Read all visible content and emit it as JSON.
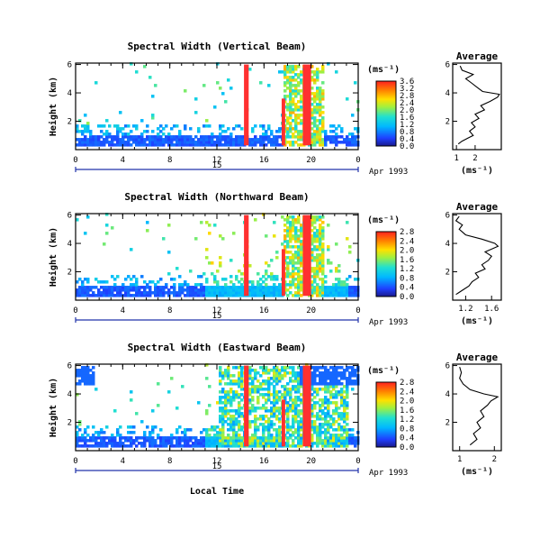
{
  "chart_data": {
    "type": "heatmap",
    "x_axis_label": "Local Time",
    "date_label": "Apr 1993",
    "day_label": "15",
    "y_axis_label": "Height (km)",
    "colorbar_unit": "(ms⁻¹)",
    "panels": [
      {
        "title": "Spectral Width (Vertical Beam)",
        "x_ticks": [
          "0",
          "4",
          "8",
          "12",
          "16",
          "20",
          "0"
        ],
        "y_ticks": [
          "6",
          "4",
          "2"
        ],
        "colorbar_ticks": [
          "3.6",
          "3.2",
          "2.8",
          "2.4",
          "2.0",
          "1.6",
          "1.2",
          "0.8",
          "0.4",
          "0.0"
        ],
        "colorbar_max": 3.6,
        "average": {
          "title": "Average",
          "x_label": "(ms⁻¹)",
          "x_ticks": [
            "1",
            "2"
          ],
          "y_ticks": [
            "6",
            "4",
            "2"
          ],
          "xlim": [
            0.8,
            3.4
          ],
          "profile": [
            [
              1.1,
              0.4
            ],
            [
              1.3,
              0.6
            ],
            [
              1.6,
              0.8
            ],
            [
              1.9,
              1.0
            ],
            [
              1.7,
              1.3
            ],
            [
              2.0,
              1.6
            ],
            [
              1.8,
              1.9
            ],
            [
              2.2,
              2.2
            ],
            [
              2.0,
              2.5
            ],
            [
              2.5,
              2.8
            ],
            [
              2.3,
              3.1
            ],
            [
              2.8,
              3.4
            ],
            [
              3.2,
              3.7
            ],
            [
              3.3,
              3.9
            ],
            [
              2.4,
              4.1
            ],
            [
              2.1,
              4.4
            ],
            [
              1.8,
              4.7
            ],
            [
              1.5,
              5.0
            ],
            [
              1.9,
              5.3
            ],
            [
              1.3,
              5.6
            ],
            [
              1.2,
              5.9
            ]
          ]
        }
      },
      {
        "title": "Spectral Width (Northward Beam)",
        "x_ticks": [
          "0",
          "4",
          "8",
          "12",
          "16",
          "20",
          "0"
        ],
        "y_ticks": [
          "6",
          "4",
          "2"
        ],
        "colorbar_ticks": [
          "2.8",
          "2.4",
          "2.0",
          "1.6",
          "1.2",
          "0.8",
          "0.4",
          "0.0"
        ],
        "colorbar_max": 2.8,
        "average": {
          "title": "Average",
          "x_label": "(ms⁻¹)",
          "x_ticks": [
            "1.2",
            "1.6"
          ],
          "y_ticks": [
            "6",
            "4",
            "2"
          ],
          "xlim": [
            1.0,
            1.75
          ],
          "profile": [
            [
              1.05,
              0.4
            ],
            [
              1.15,
              0.7
            ],
            [
              1.25,
              1.0
            ],
            [
              1.3,
              1.3
            ],
            [
              1.4,
              1.6
            ],
            [
              1.35,
              1.9
            ],
            [
              1.5,
              2.2
            ],
            [
              1.45,
              2.5
            ],
            [
              1.55,
              2.8
            ],
            [
              1.6,
              3.1
            ],
            [
              1.5,
              3.4
            ],
            [
              1.7,
              3.8
            ],
            [
              1.65,
              4.0
            ],
            [
              1.45,
              4.3
            ],
            [
              1.2,
              4.6
            ],
            [
              1.1,
              5.0
            ],
            [
              1.15,
              5.3
            ],
            [
              1.05,
              5.6
            ],
            [
              1.1,
              5.9
            ]
          ]
        }
      },
      {
        "title": "Spectral Width (Eastward Beam)",
        "x_ticks": [
          "0",
          "4",
          "8",
          "12",
          "16",
          "20",
          "0"
        ],
        "y_ticks": [
          "6",
          "4",
          "2"
        ],
        "colorbar_ticks": [
          "2.8",
          "2.4",
          "2.0",
          "1.6",
          "1.2",
          "0.8",
          "0.4",
          "0.0"
        ],
        "colorbar_max": 2.8,
        "average": {
          "title": "Average",
          "x_label": "(ms⁻¹)",
          "x_ticks": [
            "1",
            "2"
          ],
          "y_ticks": [
            "6",
            "4",
            "2"
          ],
          "xlim": [
            0.8,
            2.2
          ],
          "profile": [
            [
              1.3,
              0.4
            ],
            [
              1.5,
              0.8
            ],
            [
              1.4,
              1.2
            ],
            [
              1.6,
              1.6
            ],
            [
              1.5,
              2.0
            ],
            [
              1.7,
              2.4
            ],
            [
              1.6,
              2.8
            ],
            [
              1.8,
              3.2
            ],
            [
              1.9,
              3.5
            ],
            [
              2.1,
              3.8
            ],
            [
              1.7,
              4.0
            ],
            [
              1.3,
              4.3
            ],
            [
              1.1,
              4.7
            ],
            [
              1.0,
              5.1
            ],
            [
              1.05,
              5.5
            ],
            [
              1.0,
              5.9
            ]
          ]
        }
      }
    ]
  }
}
